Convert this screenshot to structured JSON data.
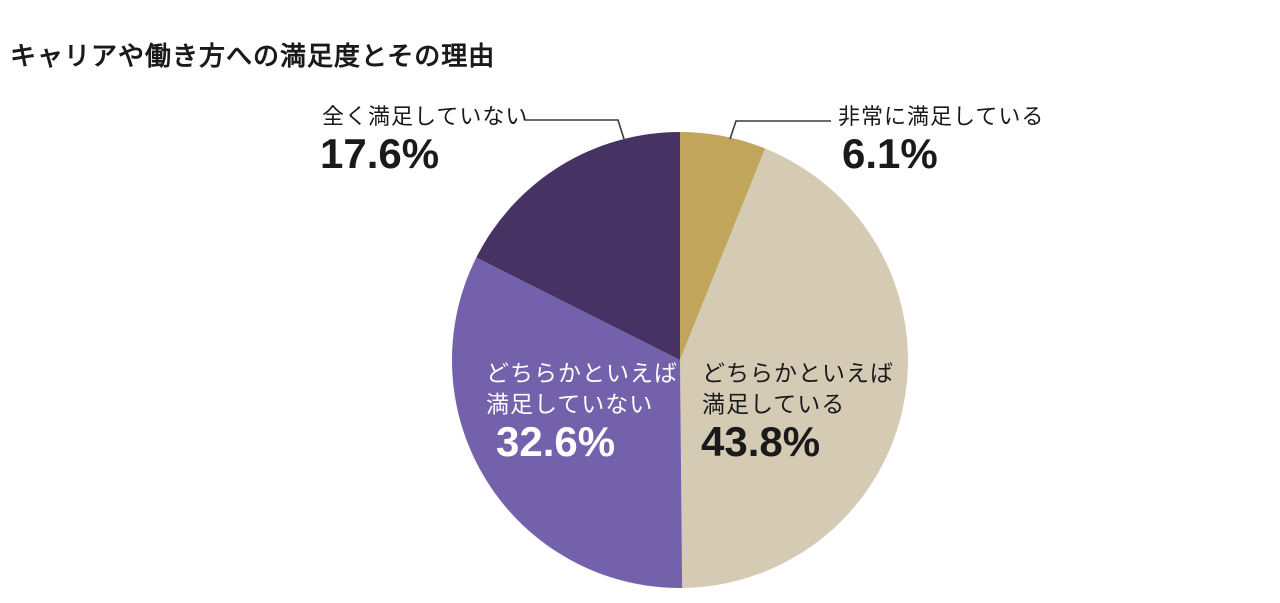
{
  "title": "キャリアや働き方への満足度とその理由",
  "chart_data": {
    "type": "pie",
    "title": "キャリアや働き方への満足度とその理由",
    "start_angle": "12-oclock",
    "direction": "clockwise",
    "legend_position": "none",
    "background": "#ffffff",
    "leader_line_color": "#3c3c3c",
    "slices": [
      {
        "label": "非常に満足している",
        "value": 6.1,
        "pct": "6.1%",
        "color": "#c1a55b",
        "label_placement": "outside-right",
        "text_color": "#1a1a1a"
      },
      {
        "label": "どちらかといえば満足している",
        "label_line1": "どちらかといえば",
        "label_line2": "満足している",
        "value": 43.8,
        "pct": "43.8%",
        "color": "#d5cbb4",
        "label_placement": "inside",
        "text_color": "#1a1a1a"
      },
      {
        "label": "どちらかといえば満足していない",
        "label_line1": "どちらかといえば",
        "label_line2": "満足していない",
        "value": 32.6,
        "pct": "32.6%",
        "color": "#7461ac",
        "label_placement": "inside",
        "text_color": "#ffffff"
      },
      {
        "label": "全く満足していない",
        "value": 17.6,
        "pct": "17.6%",
        "color": "#463363",
        "label_placement": "outside-left",
        "text_color": "#1a1a1a"
      }
    ]
  }
}
